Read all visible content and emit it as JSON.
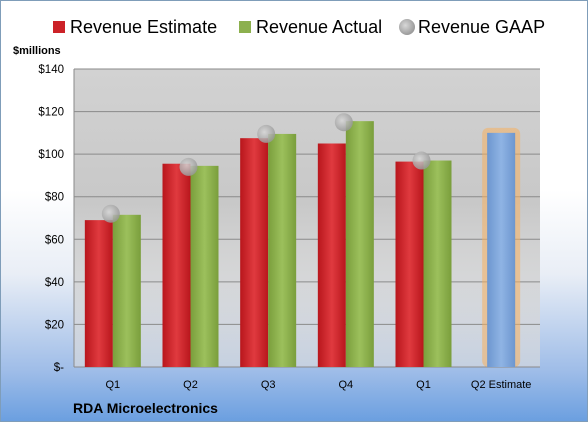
{
  "chart_data": {
    "type": "bar",
    "title": "",
    "units_label": "$millions",
    "company": "RDA Microelectronics",
    "categories": [
      "Q1",
      "Q2",
      "Q3",
      "Q4",
      "Q1",
      "Q2 Estimate"
    ],
    "series": [
      {
        "name": "Revenue Estimate",
        "kind": "bar",
        "color": "#cc2228",
        "values": [
          69,
          95.5,
          107.5,
          105,
          96.5,
          null
        ]
      },
      {
        "name": "Revenue Actual",
        "kind": "bar",
        "color": "#8cb04e",
        "values": [
          71.5,
          94.5,
          109.5,
          115.5,
          97,
          null
        ]
      },
      {
        "name": "Revenue GAAP",
        "kind": "marker",
        "color": "#b8b8b8",
        "values": [
          72,
          94,
          109.5,
          115,
          97,
          null
        ]
      },
      {
        "name": "",
        "kind": "bar-highlight",
        "color": "#7ea5d8",
        "values": [
          null,
          null,
          null,
          null,
          null,
          110
        ]
      }
    ],
    "ylim": [
      0,
      140
    ],
    "yticks": [
      0,
      20,
      40,
      60,
      80,
      100,
      120,
      140
    ],
    "ytick_labels": [
      "$-",
      "$20",
      "$40",
      "$60",
      "$80",
      "$100",
      "$120",
      "$140"
    ],
    "grid": true,
    "legend_position": "top"
  }
}
